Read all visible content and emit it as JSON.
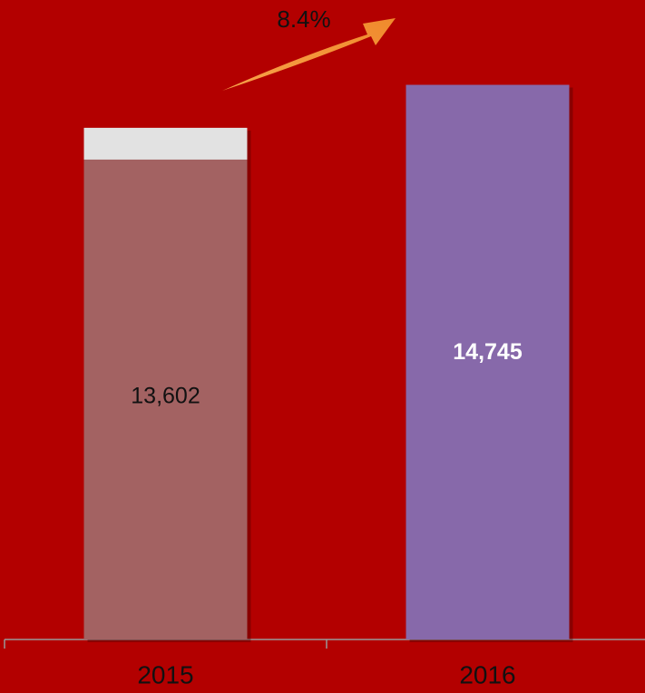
{
  "chart_data": {
    "type": "bar",
    "annotation": "8.4%",
    "categories": [
      "2015",
      "2016"
    ],
    "values": [
      13602,
      14745
    ],
    "value_labels": [
      "13,602",
      "14,745"
    ],
    "colors": [
      "#a36262",
      "#8769aa"
    ],
    "label_colors": [
      "#111111",
      "#ffffff"
    ],
    "ylim": [
      0,
      17000
    ]
  }
}
